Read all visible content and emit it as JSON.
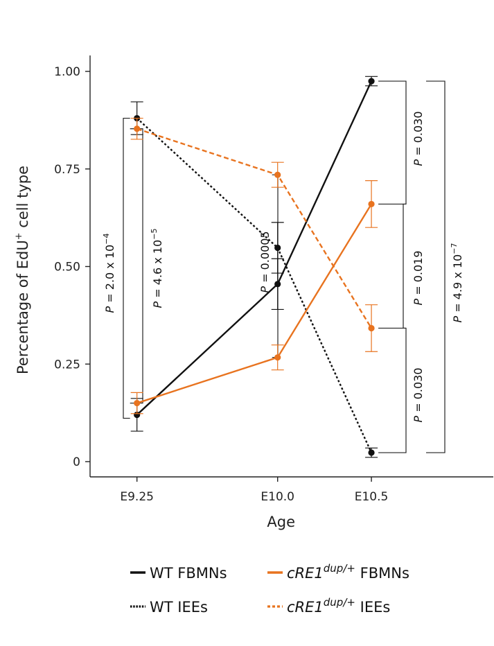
{
  "chart_data": {
    "type": "line",
    "xlabel": "Age",
    "ylabel": "Percentage of EdU",
    "ylabel_sup": "+",
    "ylabel_suffix": " cell type",
    "x": [
      "E9.25",
      "E10.0",
      "E10.5"
    ],
    "x_numeric": [
      9.25,
      10.0,
      10.5
    ],
    "xlim": [
      9.0,
      11.15
    ],
    "ylim": [
      0,
      1.0
    ],
    "yticks": [
      0,
      0.25,
      0.5,
      0.75,
      1.0
    ],
    "ytick_labels": [
      "0",
      "0.25",
      "0.50",
      "0.75",
      "1.00"
    ],
    "colors": {
      "wt": "#111111",
      "mut": "#e8731f"
    },
    "series": [
      {
        "key": "wt_fbmn",
        "name": "WT FBMNs",
        "genotype": "WT",
        "cell": "FBMNs",
        "color": "#111111",
        "dash": "solid",
        "values": [
          0.12,
          0.455,
          0.975
        ],
        "err": [
          0.042,
          0.065,
          0.012
        ]
      },
      {
        "key": "wt_iee",
        "name": "WT IEEs",
        "genotype": "WT",
        "cell": "IEEs",
        "color": "#111111",
        "dash": "dotted",
        "values": [
          0.88,
          0.548,
          0.023
        ],
        "err": [
          0.042,
          0.065,
          0.012
        ]
      },
      {
        "key": "mut_fbmn",
        "name": "cRE1dup/+ FBMNs",
        "genotype": "cRE1",
        "genotype_sup": "dup/+",
        "cell": "FBMNs",
        "color": "#e8731f",
        "dash": "solid",
        "values": [
          0.15,
          0.267,
          0.66
        ],
        "err": [
          0.027,
          0.032,
          0.06
        ]
      },
      {
        "key": "mut_iee",
        "name": "cRE1dup/+ IEEs",
        "genotype": "cRE1",
        "genotype_sup": "dup/+",
        "cell": "IEEs",
        "color": "#e8731f",
        "dash": "dashed",
        "values": [
          0.853,
          0.735,
          0.342
        ],
        "err": [
          0.027,
          0.032,
          0.06
        ]
      }
    ],
    "annotations": [
      {
        "label": "P = 2.0 x 10",
        "sup": "−4"
      },
      {
        "label": "P = 4.6 x 10",
        "sup": "−5"
      },
      {
        "label": "P = 0.0005",
        "sup": ""
      },
      {
        "label": "P = 0.030",
        "sup": ""
      },
      {
        "label": "P = 0.019",
        "sup": ""
      },
      {
        "label": "P = 0.030",
        "sup": ""
      },
      {
        "label": "P = 4.9 x 10",
        "sup": "−7"
      }
    ]
  }
}
